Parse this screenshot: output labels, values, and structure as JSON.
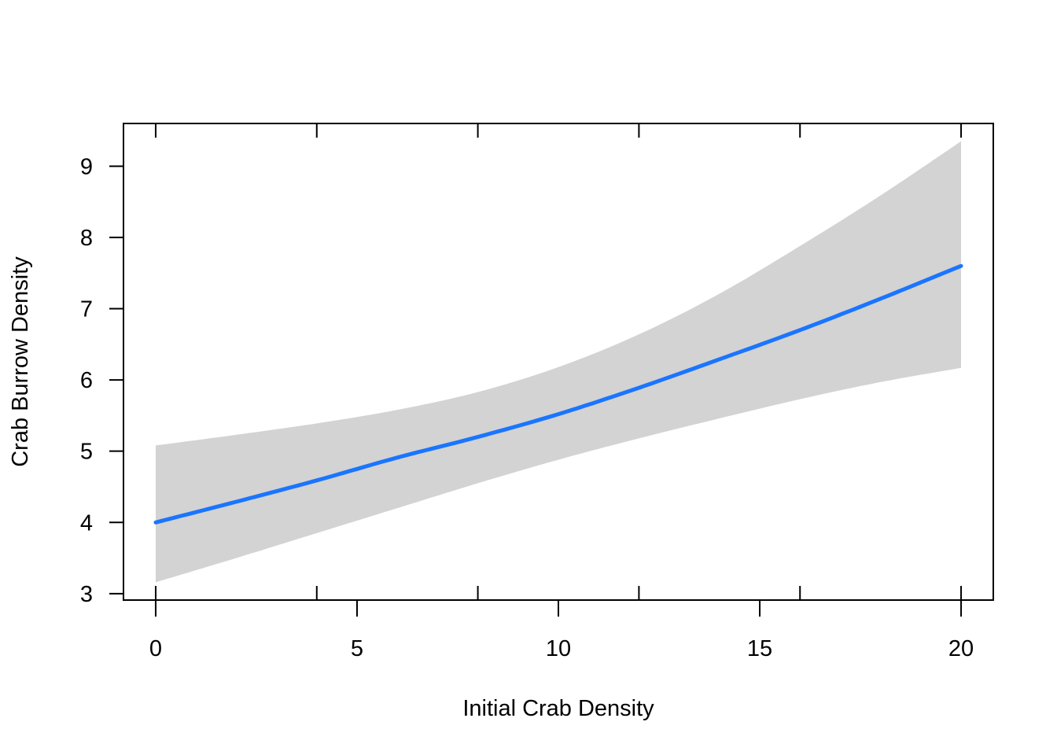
{
  "chart_data": {
    "type": "line",
    "xlabel": "Initial Crab Density",
    "ylabel": "Crab Burrow Density",
    "xlim": [
      -0.8,
      20.8
    ],
    "ylim": [
      2.91,
      9.6
    ],
    "x_ticks": [
      0,
      5,
      10,
      15,
      20
    ],
    "y_ticks": [
      3,
      4,
      5,
      6,
      7,
      8,
      9
    ],
    "x_minor_ticks": [
      0,
      4,
      8,
      12,
      16,
      20
    ],
    "grid": false,
    "legend": "none",
    "series": [
      {
        "x": [
          0,
          2,
          4,
          6,
          8,
          10,
          12,
          14,
          16,
          18,
          20
        ],
        "values": [
          4.0,
          4.29,
          4.59,
          4.91,
          5.2,
          5.52,
          5.89,
          6.29,
          6.7,
          7.14,
          7.6
        ],
        "lower": [
          3.16,
          3.5,
          3.85,
          4.2,
          4.55,
          4.88,
          5.18,
          5.46,
          5.73,
          5.97,
          6.17
        ],
        "upper": [
          5.08,
          5.23,
          5.39,
          5.58,
          5.83,
          6.18,
          6.64,
          7.21,
          7.88,
          8.59,
          9.35
        ]
      }
    ],
    "colors": {
      "line": "#1a75ff",
      "band": "#d3d3d3",
      "axis": "#000000"
    }
  }
}
